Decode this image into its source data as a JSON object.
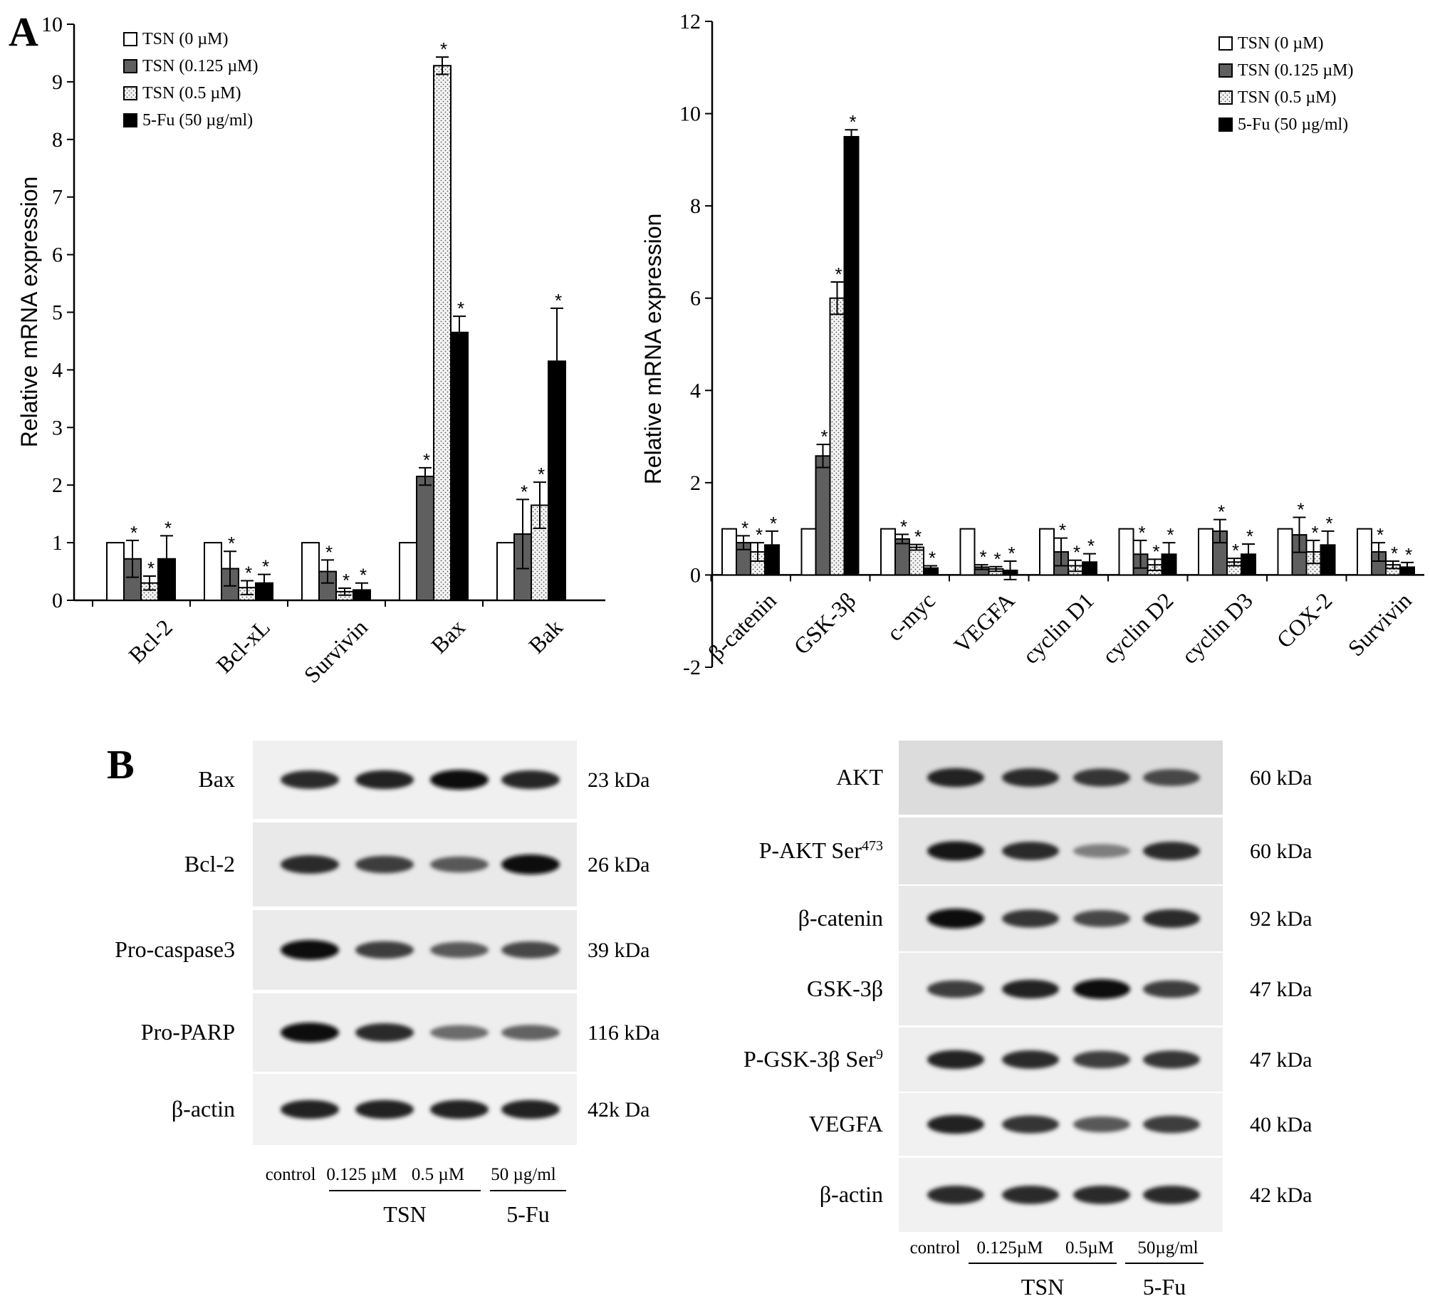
{
  "panels": {
    "a_letter": "A",
    "b_letter": "B"
  },
  "legend": [
    {
      "label": "TSN (0 µM)",
      "pattern": "white"
    },
    {
      "label": "TSN (0.125 µM)",
      "pattern": "gray"
    },
    {
      "label": "TSN (0.5 µM)",
      "pattern": "dotted"
    },
    {
      "label": "5-Fu (50 µg/ml)",
      "pattern": "black"
    }
  ],
  "colors": {
    "gray_bar": "#5f5f5f",
    "black_bar": "#000000",
    "white_bar": "#ffffff",
    "dotted_bg": "#f4f4f4"
  },
  "chart_data": [
    {
      "type": "bar",
      "title": "",
      "xlabel": "",
      "ylabel": "Relative mRNA expression",
      "ylim": [
        0,
        10
      ],
      "yticks": [
        0,
        1,
        2,
        3,
        4,
        5,
        6,
        7,
        8,
        9,
        10
      ],
      "categories": [
        "Bcl-2",
        "Bcl-xL",
        "Survivin",
        "Bax",
        "Bak"
      ],
      "series": [
        {
          "name": "TSN (0 µM)",
          "values": [
            1,
            1,
            1,
            1,
            1
          ],
          "errors": [
            0,
            0,
            0,
            0,
            0
          ],
          "significant": [
            false,
            false,
            false,
            false,
            false
          ]
        },
        {
          "name": "TSN (0.125 µM)",
          "values": [
            0.72,
            0.55,
            0.5,
            2.15,
            1.15
          ],
          "errors": [
            0.32,
            0.3,
            0.2,
            0.15,
            0.6
          ],
          "significant": [
            true,
            true,
            true,
            true,
            true
          ]
        },
        {
          "name": "TSN (0.5 µM)",
          "values": [
            0.3,
            0.22,
            0.15,
            9.28,
            1.65
          ],
          "errors": [
            0.12,
            0.12,
            0.06,
            0.15,
            0.4
          ],
          "significant": [
            true,
            true,
            true,
            true,
            true
          ]
        },
        {
          "name": "5-Fu (50 µg/ml)",
          "values": [
            0.72,
            0.3,
            0.18,
            4.65,
            4.15
          ],
          "errors": [
            0.4,
            0.15,
            0.12,
            0.28,
            0.92
          ],
          "significant": [
            true,
            true,
            true,
            true,
            true
          ]
        }
      ],
      "legend_position": "top-left",
      "grid": false
    },
    {
      "type": "bar",
      "title": "",
      "xlabel": "",
      "ylabel": "Relative mRNA expression",
      "ylim": [
        -2,
        12
      ],
      "yticks": [
        -2,
        0,
        2,
        4,
        6,
        8,
        10,
        12
      ],
      "categories": [
        "β-catenin",
        "GSK-3β",
        "c-myc",
        "VEGFA",
        "cyclin D1",
        "cyclin D2",
        "cyclin D3",
        "COX-2",
        "Survivin"
      ],
      "series": [
        {
          "name": "TSN (0 µM)",
          "values": [
            1,
            1,
            1,
            1,
            1,
            1,
            1,
            1,
            1
          ],
          "errors": [
            0,
            0,
            0,
            0,
            0,
            0,
            0,
            0,
            0
          ],
          "significant": [
            false,
            false,
            false,
            false,
            false,
            false,
            false,
            false,
            false
          ]
        },
        {
          "name": "TSN (0.125 µM)",
          "values": [
            0.7,
            2.58,
            0.78,
            0.17,
            0.5,
            0.45,
            0.95,
            0.87,
            0.5
          ],
          "errors": [
            0.15,
            0.25,
            0.1,
            0.05,
            0.3,
            0.3,
            0.25,
            0.38,
            0.2
          ],
          "significant": [
            true,
            true,
            true,
            true,
            true,
            true,
            true,
            true,
            true
          ]
        },
        {
          "name": "TSN (0.5 µM)",
          "values": [
            0.5,
            6.0,
            0.6,
            0.13,
            0.2,
            0.22,
            0.28,
            0.5,
            0.22
          ],
          "errors": [
            0.2,
            0.35,
            0.06,
            0.05,
            0.12,
            0.12,
            0.08,
            0.25,
            0.08
          ],
          "significant": [
            true,
            true,
            true,
            true,
            true,
            true,
            true,
            true,
            true
          ]
        },
        {
          "name": "5-Fu (50 µg/ml)",
          "values": [
            0.65,
            9.5,
            0.15,
            0.1,
            0.28,
            0.45,
            0.45,
            0.65,
            0.17
          ],
          "errors": [
            0.3,
            0.15,
            0.05,
            0.2,
            0.18,
            0.25,
            0.22,
            0.3,
            0.1
          ],
          "significant": [
            true,
            true,
            true,
            true,
            true,
            true,
            true,
            true,
            true
          ]
        }
      ],
      "legend_position": "top-right",
      "grid": false
    }
  ],
  "blots_left": {
    "rows": [
      {
        "label": "Bax",
        "kda": "23 kDa",
        "intensity": [
          0.85,
          0.9,
          1.0,
          0.88
        ]
      },
      {
        "label": "Bcl-2",
        "kda": "26 kDa",
        "intensity": [
          0.85,
          0.75,
          0.6,
          1.0
        ]
      },
      {
        "label": "Pro-caspase3",
        "kda": "39 kDa",
        "intensity": [
          1.0,
          0.75,
          0.6,
          0.7
        ]
      },
      {
        "label": "Pro-PARP",
        "kda": "116 kDa",
        "intensity": [
          1.0,
          0.85,
          0.5,
          0.55
        ]
      },
      {
        "label": "β-actin",
        "kda": "42k Da",
        "intensity": [
          0.9,
          0.9,
          0.9,
          0.9
        ]
      }
    ],
    "lanes": [
      "control",
      "0.125 µM",
      "0.5 µM",
      "50 µg/ml"
    ],
    "group_tsn": "TSN",
    "group_5fu": "5-Fu"
  },
  "blots_right": {
    "rows": [
      {
        "label": "AKT",
        "sup": "",
        "kda": "60 kDa",
        "intensity": [
          0.9,
          0.85,
          0.8,
          0.7
        ]
      },
      {
        "label": "P-AKT Ser",
        "sup": "473",
        "kda": "60 kDa",
        "intensity": [
          0.95,
          0.85,
          0.4,
          0.85
        ]
      },
      {
        "label": "β-catenin",
        "sup": "",
        "kda": "92 kDa",
        "intensity": [
          1.0,
          0.8,
          0.7,
          0.85
        ]
      },
      {
        "label": "GSK-3β",
        "sup": "",
        "kda": "47 kDa",
        "intensity": [
          0.75,
          0.9,
          1.0,
          0.75
        ]
      },
      {
        "label": "P-GSK-3β Ser",
        "sup": "9",
        "kda": "47 kDa",
        "intensity": [
          0.9,
          0.85,
          0.75,
          0.8
        ]
      },
      {
        "label": "VEGFA",
        "sup": "",
        "kda": "40 kDa",
        "intensity": [
          0.9,
          0.8,
          0.6,
          0.75
        ]
      },
      {
        "label": "β-actin",
        "sup": "",
        "kda": "42 kDa",
        "intensity": [
          0.85,
          0.85,
          0.85,
          0.85
        ]
      }
    ],
    "lanes": [
      "control",
      "0.125µM",
      "0.5µM",
      "50µg/ml"
    ],
    "group_tsn": "TSN",
    "group_5fu": "5-Fu"
  }
}
